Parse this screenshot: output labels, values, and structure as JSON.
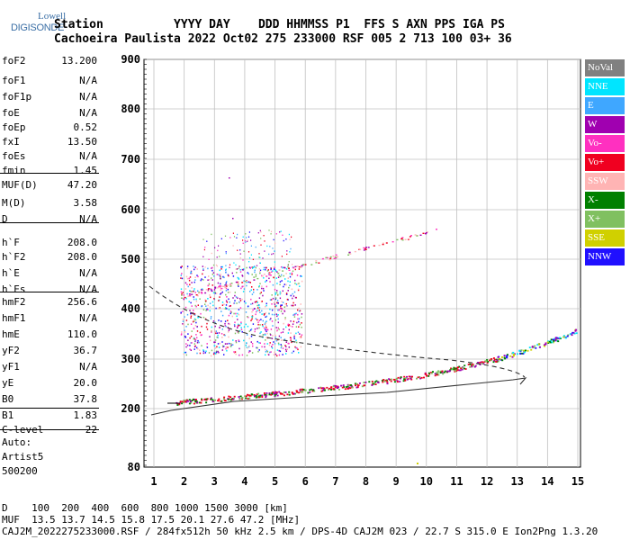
{
  "logo": {
    "line1": "Lowell",
    "line2": "DIGISONDE"
  },
  "header": {
    "line1": "Station          YYYY DAY    DDD HHMMSS P1  FFS S AXN PPS IGA PS",
    "line2": "Cachoeira Paulista 2022 Oct02 275 233000 RSF 005 2 713 100 03+ 36"
  },
  "params": [
    {
      "k": "foF2",
      "v": "13.200"
    },
    {
      "k": "foF1",
      "v": "N/A"
    },
    {
      "k": "foF1p",
      "v": "N/A"
    },
    {
      "k": "foE",
      "v": "N/A"
    },
    {
      "k": "foEp",
      "v": "0.52"
    },
    {
      "k": "fxI",
      "v": "13.50"
    },
    {
      "k": "foEs",
      "v": "N/A"
    },
    {
      "k": "fmin",
      "v": "1.45"
    },
    {
      "k": "MUF(D)",
      "v": "47.20"
    },
    {
      "k": "M(D)",
      "v": "3.58"
    },
    {
      "k": "D",
      "v": "N/A"
    },
    {
      "k": "h`F",
      "v": "208.0"
    },
    {
      "k": "h`F2",
      "v": "208.0"
    },
    {
      "k": "h`E",
      "v": "N/A"
    },
    {
      "k": "h`Es",
      "v": "N/A"
    },
    {
      "k": "hmF2",
      "v": "256.6"
    },
    {
      "k": "hmF1",
      "v": "N/A"
    },
    {
      "k": "hmE",
      "v": "110.0"
    },
    {
      "k": "yF2",
      "v": "36.7"
    },
    {
      "k": "yF1",
      "v": "N/A"
    },
    {
      "k": "yE",
      "v": "20.0"
    },
    {
      "k": "B0",
      "v": "37.8"
    },
    {
      "k": "B1",
      "v": "1.83"
    },
    {
      "k": "C-level",
      "v": "22"
    }
  ],
  "auto": {
    "line1": "Auto:",
    "line2": "Artist5",
    "line3": "500200"
  },
  "plot": {
    "y_ticks": [
      "900",
      "800",
      "700",
      "600",
      "500",
      "400",
      "300",
      "200",
      "80"
    ],
    "x_ticks": [
      "1",
      "2",
      "3",
      "4",
      "5",
      "6",
      "7",
      "8",
      "9",
      "10",
      "11",
      "12",
      "13",
      "14",
      "15"
    ]
  },
  "legend": [
    {
      "label": "NoVal",
      "color": "#808080"
    },
    {
      "label": "NNE",
      "color": "#00e5ff"
    },
    {
      "label": "E",
      "color": "#3fa7ff"
    },
    {
      "label": "W",
      "color": "#a000b0"
    },
    {
      "label": "Vo-",
      "color": "#ff30c0"
    },
    {
      "label": "Vo+",
      "color": "#f00020"
    },
    {
      "label": "SSW",
      "color": "#ffb4b4"
    },
    {
      "label": "X-",
      "color": "#008000"
    },
    {
      "label": "X+",
      "color": "#80c060"
    },
    {
      "label": "SSE",
      "color": "#d0d000"
    },
    {
      "label": "NNW",
      "color": "#2010ff"
    }
  ],
  "footer": {
    "line1": "D    100  200  400  600  800 1000 1500 3000 [km]",
    "line2": "MUF  13.5 13.7 14.5 15.8 17.5 20.1 27.6 47.2 [MHz]",
    "line3": "CAJ2M_2022275233000.RSF / 284fx512h 50 kHz 2.5 km / DPS-4D CAJ2M 023 / 22.7 S 315.0 E Ion2Png 1.3.20"
  }
}
